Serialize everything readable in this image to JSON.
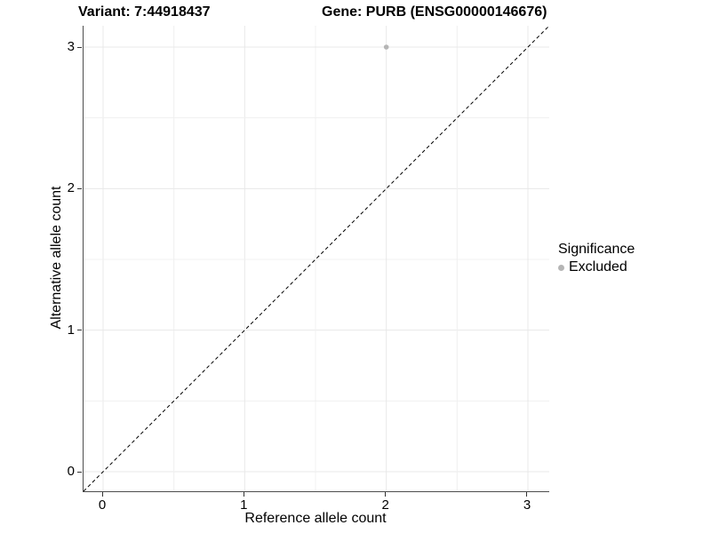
{
  "chart_data": {
    "type": "scatter",
    "title_left": "Variant: 7:44918437",
    "title_right": "Gene: PURB (ENSG00000146676)",
    "xlabel": "Reference allele count",
    "ylabel": "Alternative allele count",
    "xlim": [
      -0.15,
      3.15
    ],
    "ylim": [
      -0.15,
      3.15
    ],
    "x_ticks": [
      0,
      1,
      2,
      3
    ],
    "y_ticks": [
      0,
      1,
      2,
      3
    ],
    "minor_grid_step": 0.5,
    "grid": "major and minor gridlines, light gray, white panel background",
    "series": [
      {
        "name": "Excluded",
        "points": [
          {
            "x": 2,
            "y": 3
          }
        ],
        "color": "#b5b5b5",
        "marker": "circle"
      }
    ],
    "reference_line": {
      "type": "identity y=x diagonal",
      "style": "dashed",
      "color": "#000000"
    },
    "legend": {
      "title": "Significance",
      "position": "right",
      "entries": [
        {
          "label": "Excluded",
          "color": "#b5b5b5",
          "marker": "circle"
        }
      ]
    },
    "colors": {
      "grid_major": "#e8e8e8",
      "grid_minor": "#f0f0f0",
      "axis_line": "#4d4d4d",
      "tick_mark": "#333333",
      "text": "#000000"
    }
  }
}
